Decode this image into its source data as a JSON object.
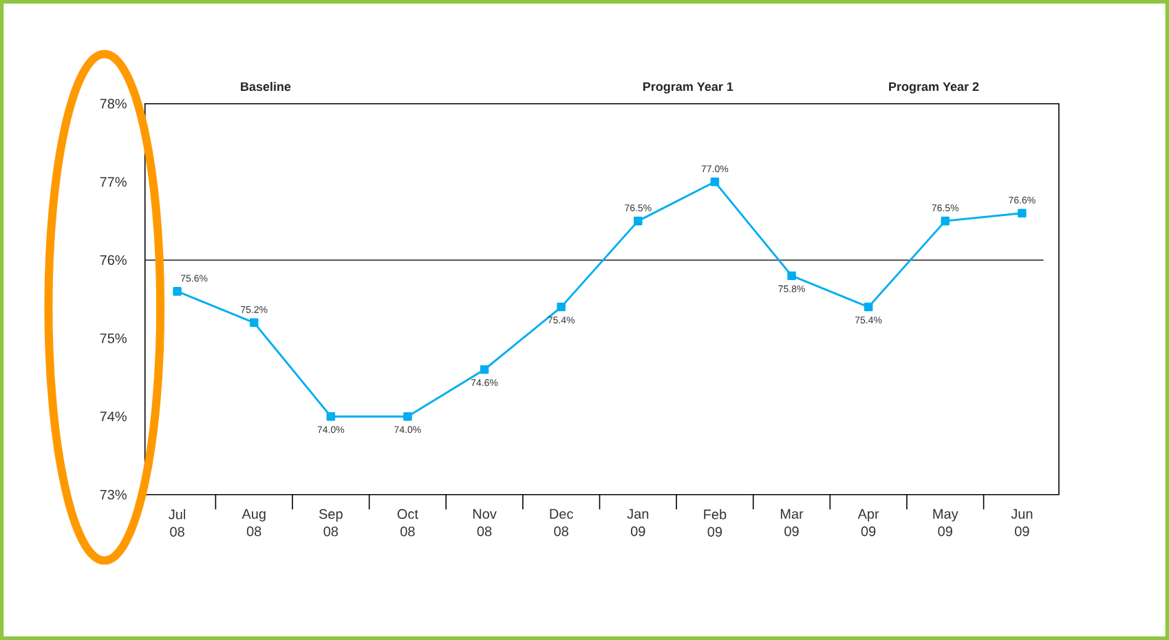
{
  "chart_data": {
    "type": "line",
    "categories": [
      "Jul 08",
      "Aug 08",
      "Sep 08",
      "Oct 08",
      "Nov 08",
      "Dec 08",
      "Jan 09",
      "Feb 09",
      "Mar 09",
      "Apr 09",
      "May 09",
      "Jun 09"
    ],
    "series": [
      {
        "color": "#00aeef",
        "values": [
          75.6,
          75.2,
          74.0,
          74.0,
          74.6,
          75.4,
          76.5,
          77.0,
          75.8,
          75.4,
          76.5,
          76.6
        ],
        "value_labels": [
          "75.6%",
          "75.2%",
          "74.0%",
          "74.0%",
          "74.6%",
          "75.4%",
          "76.5%",
          "77.0%",
          "75.8%",
          "75.4%",
          "76.5%",
          "76.6%"
        ]
      }
    ],
    "ylim": [
      73,
      78
    ],
    "yticks": [
      {
        "value": 73,
        "label": "73%"
      },
      {
        "value": 74,
        "label": "74%"
      },
      {
        "value": 75,
        "label": "75%"
      },
      {
        "value": 76,
        "label": "76%"
      },
      {
        "value": 77,
        "label": "77%"
      },
      {
        "value": 78,
        "label": "78%"
      }
    ],
    "ref_lines": [
      {
        "axis": "y",
        "value": 76,
        "color": "#231f20"
      }
    ],
    "annotations": [
      "Baseline",
      "Program Year 1",
      "Program Year 2"
    ],
    "marker": "square",
    "line_style": "solid",
    "grid": false
  }
}
